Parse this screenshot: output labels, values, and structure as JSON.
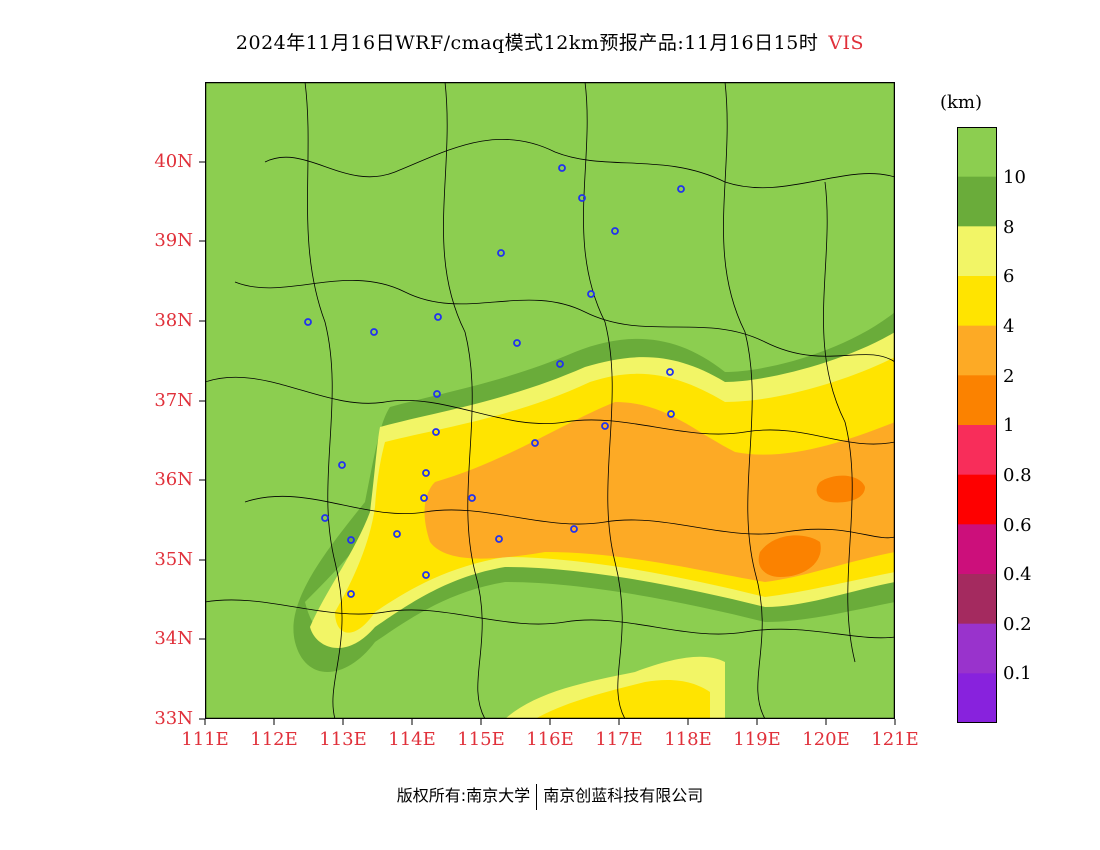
{
  "title": {
    "text": "2024年11月16日WRF/cmaq模式12km预报产品:11月16日15时",
    "variable": "VIS"
  },
  "map": {
    "lat_labels": [
      "40N",
      "39N",
      "38N",
      "37N",
      "36N",
      "35N",
      "34N",
      "33N"
    ],
    "lon_labels": [
      "111E",
      "112E",
      "113E",
      "114E",
      "115E",
      "116E",
      "117E",
      "118E",
      "119E",
      "120E",
      "121E"
    ],
    "background_color": "#8cce50"
  },
  "legend": {
    "units": "(km)",
    "colors": [
      "#8cce50",
      "#6aac3a",
      "#f2f566",
      "#ffe400",
      "#fdaa25",
      "#fb8200",
      "#f82d5a",
      "#fe0000",
      "#cc0f7b",
      "#a42a5f",
      "#9933cc",
      "#8822dd"
    ],
    "labels": [
      "10",
      "8",
      "6",
      "4",
      "2",
      "1",
      "0.8",
      "0.6",
      "0.4",
      "0.2",
      "0.1"
    ]
  },
  "footer": {
    "left": "版权所有:南京大学",
    "right": "南京创蓝科技有限公司"
  }
}
